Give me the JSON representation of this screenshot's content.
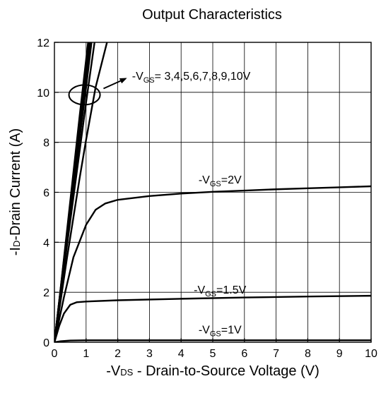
{
  "chart_data": {
    "type": "line",
    "title": "Output Characteristics",
    "xlabel": {
      "prefix": "-V",
      "sub": "DS",
      "rest": " - Drain-to-Source Voltage (V)"
    },
    "ylabel": {
      "prefix": "-I",
      "sub": "D",
      "rest": "-Drain Current (A)"
    },
    "xlim": [
      0,
      10
    ],
    "ylim": [
      0,
      12
    ],
    "xticks": [
      "0",
      "1",
      "2",
      "3",
      "4",
      "5",
      "6",
      "7",
      "8",
      "9",
      "10"
    ],
    "yticks": [
      "0",
      "2",
      "4",
      "6",
      "8",
      "10",
      "12"
    ],
    "grid": true,
    "series": [
      {
        "name": "-VGS=10V",
        "x": [
          0,
          0.2,
          0.4,
          0.6,
          0.8,
          1.0,
          1.1
        ],
        "y": [
          0,
          2.2,
          4.5,
          6.8,
          9.1,
          11.3,
          12.4
        ]
      },
      {
        "name": "-VGS=9V",
        "x": [
          0,
          0.2,
          0.4,
          0.6,
          0.8,
          1.0,
          1.12
        ],
        "y": [
          0,
          2.18,
          4.4,
          6.65,
          8.9,
          11.1,
          12.4
        ]
      },
      {
        "name": "-VGS=8V",
        "x": [
          0,
          0.2,
          0.4,
          0.6,
          0.8,
          1.0,
          1.14
        ],
        "y": [
          0,
          2.15,
          4.3,
          6.5,
          8.7,
          10.9,
          12.4
        ]
      },
      {
        "name": "-VGS=7V",
        "x": [
          0,
          0.2,
          0.4,
          0.6,
          0.8,
          1.0,
          1.16
        ],
        "y": [
          0,
          2.12,
          4.25,
          6.4,
          8.55,
          10.7,
          12.4
        ]
      },
      {
        "name": "-VGS=6V",
        "x": [
          0,
          0.2,
          0.4,
          0.6,
          0.8,
          1.0,
          1.18
        ],
        "y": [
          0,
          2.1,
          4.2,
          6.3,
          8.4,
          10.5,
          12.4
        ]
      },
      {
        "name": "-VGS=5V",
        "x": [
          0,
          0.2,
          0.4,
          0.6,
          0.8,
          1.0,
          1.2
        ],
        "y": [
          0,
          2.05,
          4.1,
          6.15,
          8.2,
          10.2,
          12.3
        ]
      },
      {
        "name": "-VGS=4V",
        "x": [
          0,
          0.2,
          0.4,
          0.6,
          0.8,
          1.0,
          1.2,
          1.3
        ],
        "y": [
          0,
          1.95,
          3.9,
          5.8,
          7.7,
          9.6,
          11.4,
          12.3
        ]
      },
      {
        "name": "-VGS=3V",
        "x": [
          0,
          0.2,
          0.4,
          0.6,
          0.8,
          1.0,
          1.3,
          1.7
        ],
        "y": [
          0,
          1.7,
          3.4,
          5.0,
          6.6,
          8.1,
          10.2,
          12.2
        ]
      },
      {
        "name": "-VGS=2V",
        "x": [
          0,
          0.3,
          0.6,
          1.0,
          1.3,
          1.6,
          2.0,
          3.0,
          4.0,
          5.0,
          6.0,
          7.0,
          8.0,
          9.0,
          10.0
        ],
        "y": [
          0,
          1.8,
          3.4,
          4.7,
          5.3,
          5.55,
          5.7,
          5.85,
          5.95,
          6.02,
          6.07,
          6.12,
          6.16,
          6.2,
          6.24
        ]
      },
      {
        "name": "-VGS=1.5V",
        "x": [
          0,
          0.15,
          0.3,
          0.5,
          0.7,
          1.0,
          2.0,
          4.0,
          6.0,
          8.0,
          10.0
        ],
        "y": [
          0,
          0.65,
          1.15,
          1.5,
          1.6,
          1.63,
          1.68,
          1.74,
          1.79,
          1.83,
          1.86
        ]
      },
      {
        "name": "-VGS=1V",
        "x": [
          0,
          0.2,
          0.5,
          1.0,
          2.0,
          5.0,
          10.0
        ],
        "y": [
          0,
          0.04,
          0.07,
          0.08,
          0.08,
          0.08,
          0.08
        ]
      }
    ],
    "annotations": [
      {
        "prefix": "-V",
        "sub": "GS",
        "rest": "= 3,4,5,6,7,8,9,10V",
        "x": 2.45,
        "y": 10.5,
        "arrow_from": [
          1.55,
          10.15
        ],
        "arrow_to": [
          2.25,
          10.55
        ],
        "circle": [
          0.95,
          9.9
        ]
      },
      {
        "prefix": "-V",
        "sub": "GS",
        "rest": "=2V",
        "x": 4.55,
        "y": 6.35
      },
      {
        "prefix": "-V",
        "sub": "GS",
        "rest": "=1.5V",
        "x": 4.4,
        "y": 1.95
      },
      {
        "prefix": "-V",
        "sub": "GS",
        "rest": "=1V",
        "x": 4.55,
        "y": 0.35
      }
    ]
  }
}
